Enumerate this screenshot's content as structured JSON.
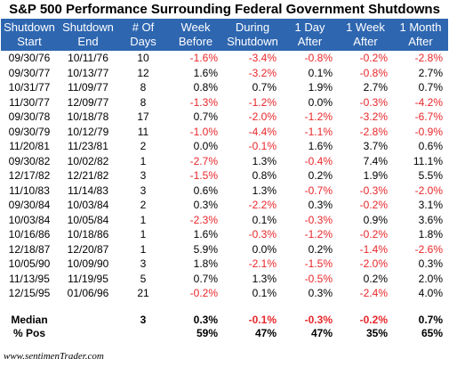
{
  "chart_data": {
    "type": "table",
    "title": "S&P 500 Performance Surrounding Federal Government Shutdowns",
    "columns": [
      "Shutdown Start",
      "Shutdown End",
      "# Of Days",
      "Week Before",
      "During Shutdown",
      "1 Day After",
      "1 Week After",
      "1 Month After"
    ],
    "rows": [
      [
        "09/30/76",
        "10/11/76",
        "10",
        "-1.6%",
        "-3.4%",
        "-0.8%",
        "-0.2%",
        "-2.8%"
      ],
      [
        "09/30/77",
        "10/13/77",
        "12",
        "1.6%",
        "-3.2%",
        "0.1%",
        "-0.8%",
        "2.7%"
      ],
      [
        "10/31/77",
        "11/09/77",
        "8",
        "0.8%",
        "0.7%",
        "1.9%",
        "2.7%",
        "0.7%"
      ],
      [
        "11/30/77",
        "12/09/77",
        "8",
        "-1.3%",
        "-1.2%",
        "0.0%",
        "-0.3%",
        "-4.2%"
      ],
      [
        "09/30/78",
        "10/18/78",
        "17",
        "0.7%",
        "-2.0%",
        "-1.2%",
        "-3.2%",
        "-6.7%"
      ],
      [
        "09/30/79",
        "10/12/79",
        "11",
        "-1.0%",
        "-4.4%",
        "-1.1%",
        "-2.8%",
        "-0.9%"
      ],
      [
        "11/20/81",
        "11/23/81",
        "2",
        "0.0%",
        "-0.1%",
        "1.6%",
        "3.7%",
        "0.6%"
      ],
      [
        "09/30/82",
        "10/02/82",
        "1",
        "-2.7%",
        "1.3%",
        "-0.4%",
        "7.4%",
        "11.1%"
      ],
      [
        "12/17/82",
        "12/21/82",
        "3",
        "-1.5%",
        "0.8%",
        "0.2%",
        "1.9%",
        "5.5%"
      ],
      [
        "11/10/83",
        "11/14/83",
        "3",
        "0.6%",
        "1.3%",
        "-0.7%",
        "-0.3%",
        "-2.0%"
      ],
      [
        "09/30/84",
        "10/03/84",
        "2",
        "0.3%",
        "-2.2%",
        "0.3%",
        "-0.2%",
        "3.1%"
      ],
      [
        "10/03/84",
        "10/05/84",
        "1",
        "-2.3%",
        "0.1%",
        "-0.3%",
        "0.9%",
        "3.6%"
      ],
      [
        "10/16/86",
        "10/18/86",
        "1",
        "1.6%",
        "-0.3%",
        "-1.2%",
        "-0.2%",
        "1.8%"
      ],
      [
        "12/18/87",
        "12/20/87",
        "1",
        "5.9%",
        "0.0%",
        "0.2%",
        "-1.4%",
        "-2.6%"
      ],
      [
        "10/05/90",
        "10/09/90",
        "3",
        "1.8%",
        "-2.1%",
        "-1.5%",
        "-2.0%",
        "0.3%"
      ],
      [
        "11/13/95",
        "11/19/95",
        "5",
        "0.7%",
        "1.3%",
        "-0.5%",
        "0.2%",
        "2.0%"
      ],
      [
        "12/15/95",
        "01/06/96",
        "21",
        "-0.2%",
        "0.1%",
        "0.3%",
        "-2.4%",
        "4.0%"
      ]
    ],
    "summary": [
      [
        "Median",
        "",
        "3",
        "0.3%",
        "-0.1%",
        "-0.3%",
        "-0.2%",
        "0.7%"
      ],
      [
        "% Pos",
        "",
        "",
        "59%",
        "47%",
        "47%",
        "35%",
        "65%"
      ]
    ],
    "negative_color": "#e8262a",
    "header_bg": "#2e66b0"
  },
  "footer": "www.sentimenTrader.com"
}
